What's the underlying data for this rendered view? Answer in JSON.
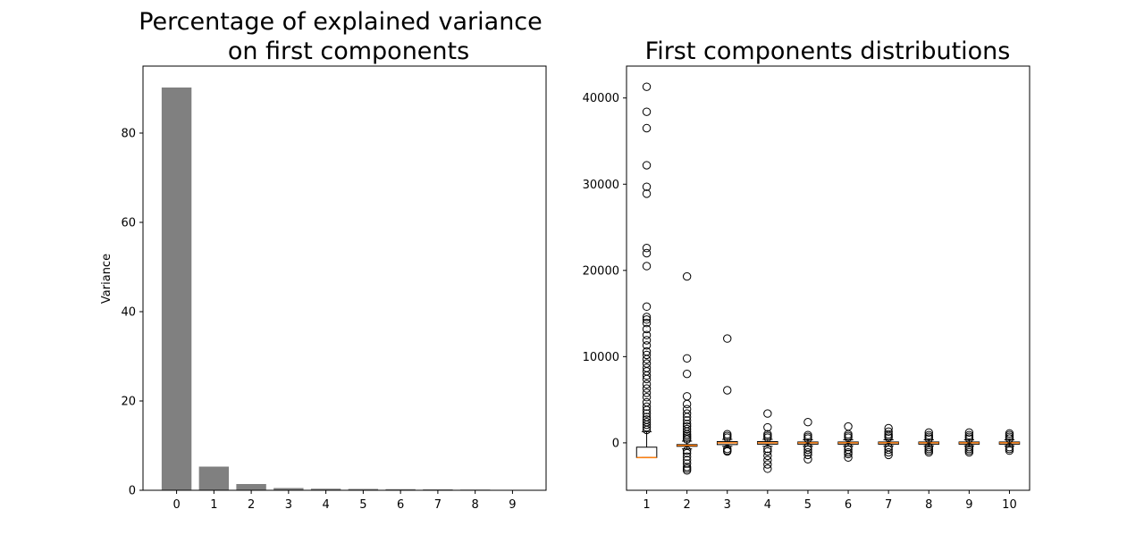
{
  "chart_data": [
    {
      "type": "bar",
      "title_line1": "Percentage of explained variance",
      "title_line2": "on first components",
      "xlabel": "",
      "ylabel": "Variance",
      "categories": [
        "0",
        "1",
        "2",
        "3",
        "4",
        "5",
        "6",
        "7",
        "8",
        "9"
      ],
      "values": [
        90.2,
        5.3,
        1.4,
        0.5,
        0.35,
        0.3,
        0.25,
        0.2,
        0.15,
        0.1
      ],
      "ylim": [
        0,
        95
      ],
      "yticks": [
        0,
        20,
        40,
        60,
        80
      ],
      "bar_color": "#808080"
    },
    {
      "type": "box",
      "title": "First components distributions",
      "xlabel": "",
      "ylabel": "",
      "categories": [
        "1",
        "2",
        "3",
        "4",
        "5",
        "6",
        "7",
        "8",
        "9",
        "10"
      ],
      "ylim": [
        -5500,
        43700
      ],
      "yticks": [
        0,
        10000,
        20000,
        30000,
        40000
      ],
      "median_color": "#ff7f0e",
      "boxes": [
        {
          "q1": -1700,
          "median": -1700,
          "q3": -500,
          "whislo": -1700,
          "whishi": 1300,
          "fliers": [
            41300,
            38400,
            36500,
            32200,
            29700,
            28900,
            22600,
            22000,
            20500,
            15800,
            14600,
            14300,
            13900,
            13200,
            12500,
            11900,
            11300,
            10600,
            10200,
            9700,
            9200,
            8700,
            8300,
            7800,
            7400,
            6800,
            6300,
            5800,
            5300,
            4700,
            4200,
            3800,
            3400,
            3000,
            2700,
            2400,
            2100,
            1800,
            1500
          ]
        },
        {
          "q1": -400,
          "median": -300,
          "q3": -200,
          "whislo": -700,
          "whishi": 200,
          "fliers": [
            19300,
            9800,
            8000,
            5400,
            4500,
            3900,
            3400,
            3000,
            2600,
            2200,
            1900,
            1600,
            1300,
            1000,
            800,
            600,
            400,
            -900,
            -1200,
            -1600,
            -2000,
            -2400,
            -2800,
            -3000,
            -3200
          ]
        },
        {
          "q1": -200,
          "median": 0,
          "q3": 150,
          "whislo": -400,
          "whishi": 400,
          "fliers": [
            12100,
            6100,
            1000,
            800,
            600,
            -700,
            -900,
            -1000
          ]
        },
        {
          "q1": -150,
          "median": 0,
          "q3": 150,
          "whislo": -400,
          "whishi": 400,
          "fliers": [
            3400,
            1800,
            1000,
            800,
            600,
            -700,
            -1000,
            -1500,
            -2000,
            -2500,
            -3000
          ]
        },
        {
          "q1": -150,
          "median": 0,
          "q3": 100,
          "whislo": -350,
          "whishi": 350,
          "fliers": [
            2400,
            900,
            700,
            500,
            -500,
            -800,
            -1100,
            -1400,
            -1900
          ]
        },
        {
          "q1": -150,
          "median": 0,
          "q3": 100,
          "whislo": -350,
          "whishi": 350,
          "fliers": [
            1900,
            1000,
            800,
            600,
            -500,
            -800,
            -1100,
            -1300,
            -1700
          ]
        },
        {
          "q1": -150,
          "median": 0,
          "q3": 100,
          "whislo": -350,
          "whishi": 350,
          "fliers": [
            1700,
            1300,
            1000,
            800,
            600,
            -500,
            -800,
            -1100,
            -1400
          ]
        },
        {
          "q1": -150,
          "median": 0,
          "q3": 100,
          "whislo": -350,
          "whishi": 350,
          "fliers": [
            1200,
            900,
            700,
            500,
            -500,
            -700,
            -900,
            -1100
          ]
        },
        {
          "q1": -150,
          "median": 0,
          "q3": 100,
          "whislo": -350,
          "whishi": 350,
          "fliers": [
            1200,
            900,
            700,
            500,
            -500,
            -700,
            -900,
            -1100
          ]
        },
        {
          "q1": -150,
          "median": 0,
          "q3": 100,
          "whislo": -350,
          "whishi": 350,
          "fliers": [
            1100,
            900,
            700,
            500,
            -500,
            -700,
            -900
          ]
        }
      ]
    }
  ]
}
